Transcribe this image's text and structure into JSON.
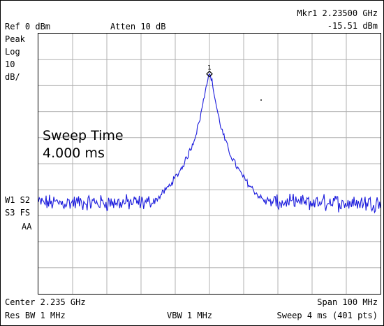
{
  "header": {
    "ref_level": "Ref 0 dBm",
    "attenuation": "Atten 10 dB",
    "marker_label": "Mkr1  2.23500 GHz",
    "marker_amplitude": "-15.51 dBm"
  },
  "left_annotations": {
    "detector": "Peak",
    "scale_type": "Log",
    "scale_value": "10",
    "scale_unit": "dB/",
    "trace_line1": "W1  S2",
    "trace_line2": "S3  FS",
    "trace_line3": "AA"
  },
  "overlay": {
    "line1": "Sweep Time",
    "line2": "4.000 ms"
  },
  "marker": {
    "number": "1"
  },
  "footer": {
    "center": "Center 2.235 GHz",
    "span": "Span 100 MHz",
    "res_bw": "Res BW 1 MHz",
    "vbw": "VBW 1 MHz",
    "sweep": "Sweep 4 ms (401 pts)"
  },
  "colors": {
    "trace": "#1a1adc",
    "grid": "#b0b0b0",
    "text": "#000000"
  },
  "grid": {
    "columns": 10,
    "rows": 10
  },
  "chart_data": {
    "type": "line",
    "x_units": "GHz",
    "y_units": "dBm",
    "xlim": [
      2.185,
      2.285
    ],
    "ylim": [
      -100,
      0
    ],
    "peak": {
      "x": 2.235,
      "y": -15.51
    },
    "noise_floor_dbm": -65,
    "points": 401
  }
}
